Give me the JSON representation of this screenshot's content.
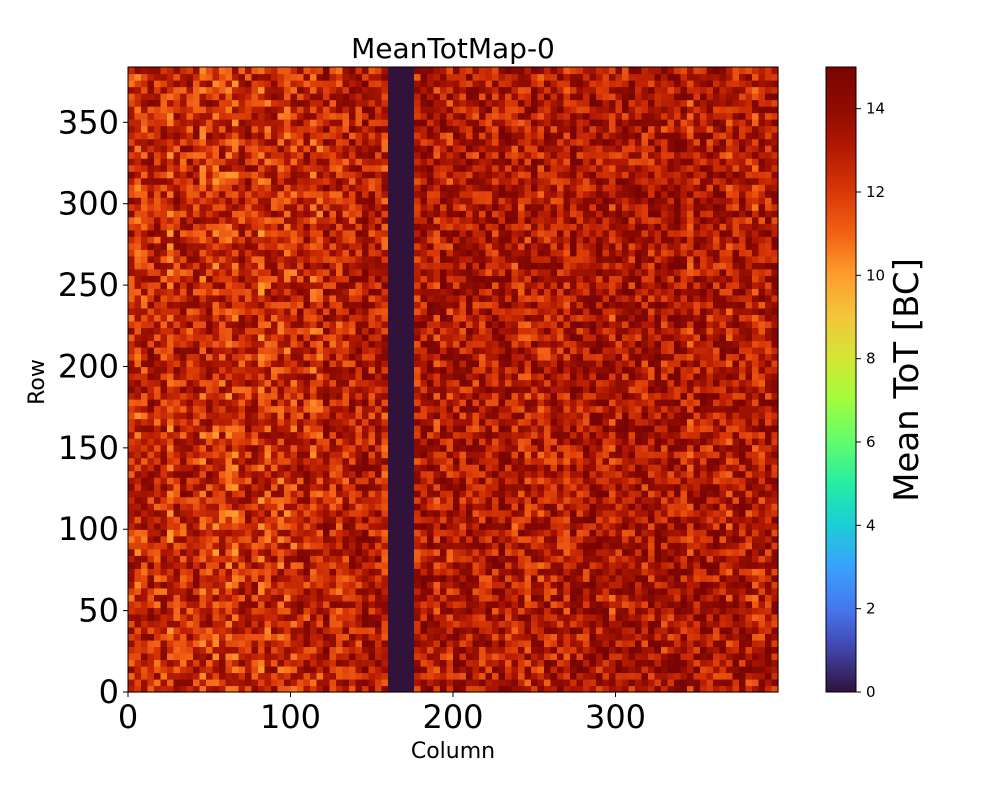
{
  "chart_data": {
    "type": "heatmap",
    "title": "MeanTotMap-0",
    "xlabel": "Column",
    "ylabel": "Row",
    "xlim": [
      0,
      400
    ],
    "ylim": [
      0,
      384
    ],
    "x_ticks": [
      0,
      100,
      200,
      300
    ],
    "x_tick_labels": [
      "0",
      "100",
      "200",
      "300"
    ],
    "y_ticks": [
      0,
      50,
      100,
      150,
      200,
      250,
      300,
      350
    ],
    "y_tick_labels": [
      "0",
      "50",
      "100",
      "150",
      "200",
      "250",
      "300",
      "350"
    ],
    "colorbar": {
      "label": "Mean ToT [BC]",
      "range": [
        0,
        15
      ],
      "ticks": [
        0,
        2,
        4,
        6,
        8,
        10,
        12,
        14
      ],
      "tick_labels": [
        "0",
        "2",
        "4",
        "6",
        "8",
        "10",
        "12",
        "14"
      ],
      "colormap": "turbo"
    },
    "dead_columns": [
      160,
      176
    ],
    "dead_value": 0,
    "typical_value_range": [
      11,
      15
    ],
    "grid": false
  }
}
